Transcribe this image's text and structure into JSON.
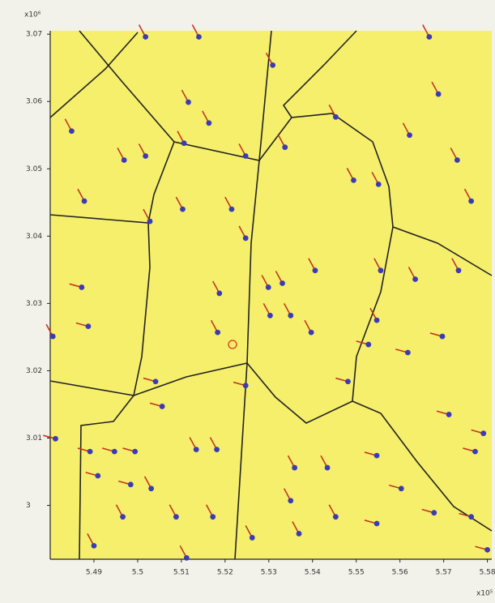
{
  "chart_data": {
    "type": "quiver",
    "y_multiplier": "x10⁶",
    "x_multiplier": "x10⁵",
    "xlim": [
      5.48,
      5.581
    ],
    "ylim": [
      2.992,
      3.0705
    ],
    "xticks": [
      5.49,
      5.5,
      5.51,
      5.52,
      5.53,
      5.54,
      5.55,
      5.56,
      5.57,
      5.58
    ],
    "yticks": [
      {
        "value": 3,
        "label": "3"
      },
      3.01,
      3.02,
      3.03,
      3.04,
      3.05,
      3.06,
      3.07
    ],
    "point_color": "#3b3bb5",
    "arrow_color": "#c2381f",
    "background": "#f6ef6c",
    "x": [
      5.5018,
      5.514,
      5.5309,
      5.5667,
      5.5116,
      5.5163,
      5.4849,
      5.4969,
      5.5018,
      5.5106,
      5.5247,
      5.5337,
      5.5453,
      5.5494,
      5.5551,
      5.5622,
      5.5688,
      5.5731,
      5.5763,
      5.4878,
      5.5028,
      5.5103,
      5.5215,
      5.5247,
      5.5299,
      5.5331,
      5.5303,
      5.535,
      5.5406,
      5.5397,
      5.5187,
      5.5183,
      5.4872,
      5.4887,
      5.5556,
      5.5635,
      5.5734,
      5.5547,
      5.5528,
      5.5618,
      5.5697,
      5.5481,
      5.5247,
      5.5041,
      5.5056,
      5.4812,
      5.4891,
      5.4947,
      5.4994,
      5.5134,
      5.5181,
      5.4909,
      5.4984,
      5.5031,
      5.5712,
      5.5791,
      5.5772,
      5.5547,
      5.5603,
      5.5678,
      5.5763,
      5.5359,
      5.5434,
      5.535,
      5.5453,
      5.5547,
      5.5088,
      5.5172,
      5.5262,
      5.5369,
      5.4966,
      5.49,
      5.58,
      5.5112,
      5.4806
    ],
    "y": [
      3.0696,
      3.0696,
      3.0654,
      3.0696,
      3.0599,
      3.0568,
      3.0556,
      3.0513,
      3.0519,
      3.0538,
      3.0519,
      3.0532,
      3.0577,
      3.0483,
      3.0477,
      3.055,
      3.0611,
      3.0513,
      3.0452,
      3.0452,
      3.0422,
      3.044,
      3.044,
      3.0397,
      3.0324,
      3.033,
      3.0282,
      3.0282,
      3.0349,
      3.0257,
      3.0315,
      3.0257,
      3.0324,
      3.0266,
      3.0349,
      3.0336,
      3.0349,
      3.0275,
      3.0239,
      3.0227,
      3.0251,
      3.0184,
      3.0178,
      3.0184,
      3.0147,
      3.0099,
      3.008,
      3.008,
      3.008,
      3.0083,
      3.0083,
      3.0044,
      3.0031,
      3.0025,
      3.0135,
      3.0107,
      3.008,
      3.0074,
      3.0025,
      2.9989,
      2.9983,
      3.0056,
      3.0056,
      3.0007,
      2.9983,
      2.9973,
      2.9983,
      2.9983,
      2.9952,
      2.9958,
      2.9983,
      2.994,
      2.9934,
      2.9922,
      3.0251
    ],
    "u": [
      -0.0015,
      -0.0015,
      -0.0015,
      -0.0015,
      -0.0015,
      -0.0015,
      -0.0015,
      -0.0015,
      -0.0015,
      -0.0015,
      -0.0015,
      -0.0015,
      -0.0015,
      -0.0015,
      -0.0015,
      -0.0015,
      -0.0015,
      -0.0015,
      -0.0015,
      -0.0015,
      -0.0015,
      -0.0015,
      -0.0015,
      -0.0015,
      -0.0015,
      -0.0015,
      -0.0015,
      -0.0015,
      -0.0015,
      -0.0015,
      -0.0015,
      -0.0015,
      -0.0028,
      -0.0028,
      -0.0015,
      -0.0015,
      -0.0015,
      -0.0015,
      -0.0028,
      -0.0028,
      -0.0028,
      -0.0028,
      -0.0028,
      -0.0028,
      -0.0028,
      -0.0028,
      -0.0028,
      -0.0028,
      -0.0028,
      -0.0015,
      -0.0015,
      -0.0028,
      -0.0028,
      -0.0015,
      -0.0028,
      -0.0028,
      -0.0028,
      -0.0028,
      -0.0028,
      -0.0028,
      -0.0028,
      -0.0015,
      -0.0015,
      -0.0015,
      -0.0015,
      -0.0028,
      -0.0015,
      -0.0015,
      -0.0015,
      -0.0015,
      -0.0015,
      -0.0015,
      -0.0028,
      -0.0015,
      -0.0015
    ],
    "v": [
      0.0018,
      0.0018,
      0.0018,
      0.0018,
      0.0018,
      0.0018,
      0.0018,
      0.0018,
      0.0018,
      0.0018,
      0.0018,
      0.0018,
      0.0018,
      0.0018,
      0.0018,
      0.0018,
      0.0018,
      0.0018,
      0.0018,
      0.0018,
      0.0018,
      0.0018,
      0.0018,
      0.0018,
      0.0018,
      0.0018,
      0.0018,
      0.0018,
      0.0018,
      0.0018,
      0.0018,
      0.0018,
      0.0005,
      0.0005,
      0.0018,
      0.0018,
      0.0018,
      0.0018,
      0.0005,
      0.0005,
      0.0005,
      0.0005,
      0.0005,
      0.0005,
      0.0005,
      0.0005,
      0.0005,
      0.0005,
      0.0005,
      0.0018,
      0.0018,
      0.0005,
      0.0005,
      0.0018,
      0.0005,
      0.0005,
      0.0005,
      0.0005,
      0.0005,
      0.0005,
      0.0005,
      0.0018,
      0.0018,
      0.0018,
      0.0018,
      0.0005,
      0.0018,
      0.0018,
      0.0018,
      0.0018,
      0.0018,
      0.0018,
      0.0005,
      0.0018,
      0.0018
    ]
  }
}
